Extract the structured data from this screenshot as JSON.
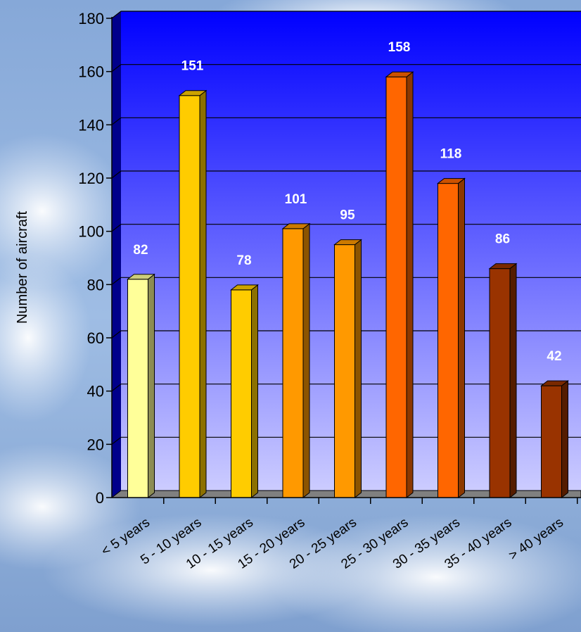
{
  "chart_data": {
    "type": "bar",
    "title": "",
    "xlabel": "",
    "ylabel": "Number of aircraft",
    "ylim": [
      0,
      180
    ],
    "yticks": [
      "0",
      "20",
      "40",
      "60",
      "80",
      "100",
      "120",
      "140",
      "160",
      "180"
    ],
    "categories": [
      "< 5 years",
      "5 - 10 years",
      "10 - 15 years",
      "15 - 20 years",
      "20 - 25 years",
      "25 - 30 years",
      "30 - 35 years",
      "35 - 40 years",
      "> 40 years"
    ],
    "values": [
      82,
      151,
      78,
      101,
      95,
      158,
      118,
      86,
      42
    ],
    "data_labels": [
      "82",
      "151",
      "78",
      "101",
      "95",
      "158",
      "118",
      "86",
      "42"
    ],
    "bar_colors": [
      "#ffff99",
      "#ffcc00",
      "#ffcc00",
      "#ff9900",
      "#ff9900",
      "#ff6600",
      "#ff6600",
      "#993300",
      "#993300"
    ],
    "plot_background": [
      "#0000ff",
      "#ccccff"
    ],
    "grid": true,
    "legend": "none",
    "style": "3d-bar"
  }
}
